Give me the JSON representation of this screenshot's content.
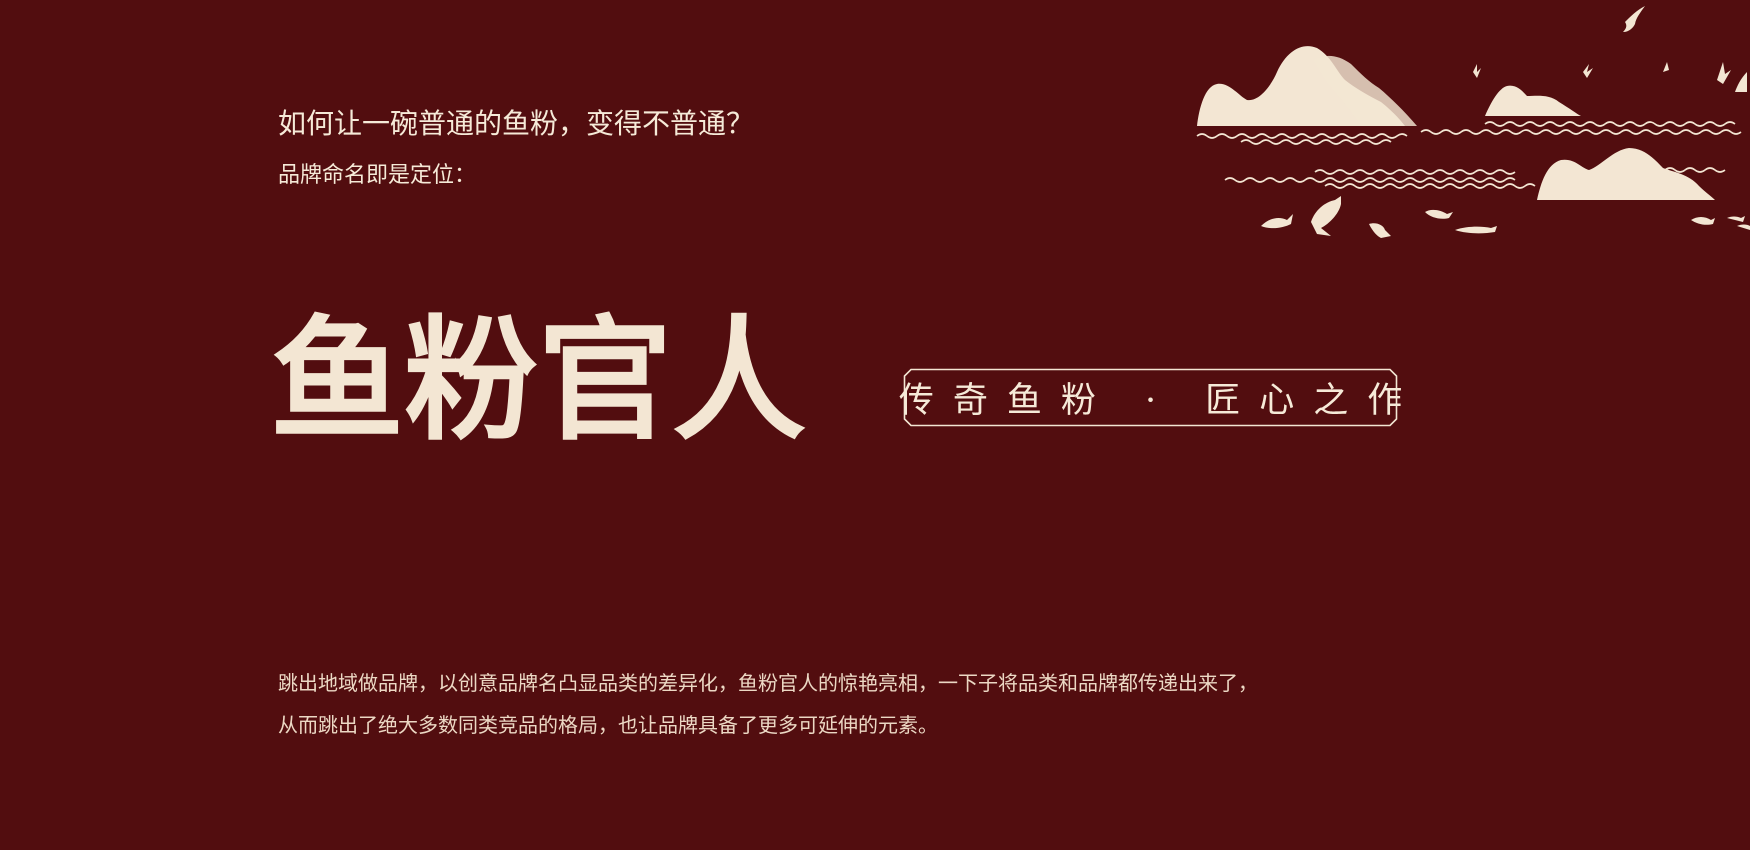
{
  "intro": {
    "question": "如何让一碗普通的鱼粉，变得不普通？",
    "subheading": "品牌命名即是定位："
  },
  "brand": {
    "name": "鱼粉官人",
    "tagline": "传奇鱼粉 · 匠心之作"
  },
  "description": {
    "lines": [
      "跳出地域做品牌，以创意品牌名凸显品类的差异化，鱼粉官人的惊艳亮相，一下子将品类和品牌都传递出来了，",
      "从而跳出了绝大多数同类竞品的格局，也让品牌具备了更多可延伸的元素。"
    ]
  },
  "colors": {
    "background": "#520d0f",
    "cream": "#f3e6d3"
  },
  "illustration": {
    "icons": [
      "mountain-icon",
      "wave-icon",
      "bird-icon",
      "fish-icon"
    ]
  }
}
